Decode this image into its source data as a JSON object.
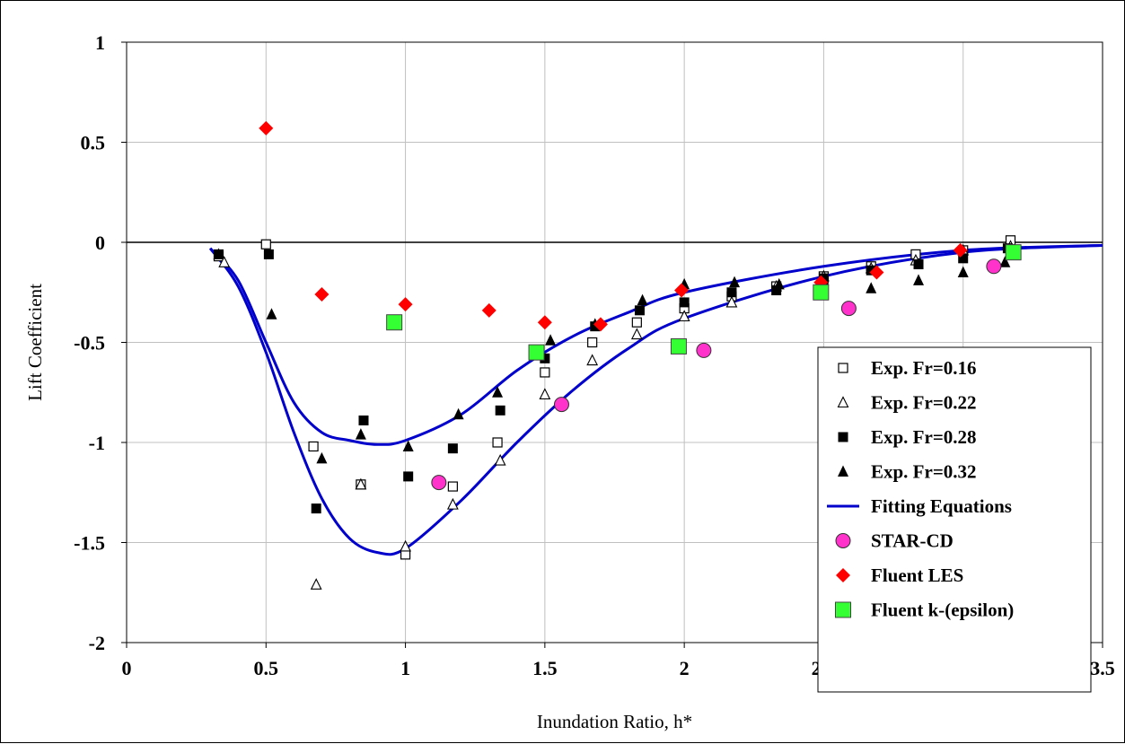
{
  "chart_data": {
    "type": "scatter",
    "title": "",
    "xlabel": "Inundation Ratio, h*",
    "ylabel": "Lift Coefficient",
    "xlim": [
      0,
      3.5
    ],
    "ylim": [
      -2,
      1
    ],
    "x_ticks": [
      "0",
      "0.5",
      "1",
      "1.5",
      "2",
      "2.5",
      "3",
      "3.5"
    ],
    "y_ticks": [
      "1",
      "0.5",
      "0",
      "-0.5",
      "-1",
      "-1.5",
      "-2"
    ],
    "x_tick_values": [
      0,
      0.5,
      1,
      1.5,
      2,
      2.5,
      3,
      3.5
    ],
    "y_tick_values": [
      1,
      0.5,
      0,
      -0.5,
      -1,
      -1.5,
      -2
    ],
    "grid": true,
    "zero_line": true,
    "legend_position": "bottom-right",
    "series": [
      {
        "name": "Exp. Fr=0.16",
        "marker": "square-open",
        "color": "#000000",
        "points": [
          [
            0.33,
            -0.07
          ],
          [
            0.5,
            -0.01
          ],
          [
            0.67,
            -1.02
          ],
          [
            0.84,
            -1.21
          ],
          [
            1.0,
            -1.56
          ],
          [
            1.17,
            -1.22
          ],
          [
            1.33,
            -1.0
          ],
          [
            1.5,
            -0.65
          ],
          [
            1.67,
            -0.5
          ],
          [
            1.83,
            -0.4
          ],
          [
            2.0,
            -0.33
          ],
          [
            2.17,
            -0.27
          ],
          [
            2.33,
            -0.22
          ],
          [
            2.5,
            -0.17
          ],
          [
            2.67,
            -0.12
          ],
          [
            2.83,
            -0.06
          ],
          [
            3.0,
            -0.04
          ],
          [
            3.17,
            0.01
          ]
        ]
      },
      {
        "name": "Exp. Fr=0.22",
        "marker": "triangle-open",
        "color": "#000000",
        "points": [
          [
            0.35,
            -0.1
          ],
          [
            0.68,
            -1.71
          ],
          [
            0.84,
            -1.21
          ],
          [
            1.0,
            -1.52
          ],
          [
            1.17,
            -1.31
          ],
          [
            1.34,
            -1.09
          ],
          [
            1.5,
            -0.76
          ],
          [
            1.67,
            -0.59
          ],
          [
            1.83,
            -0.46
          ],
          [
            2.0,
            -0.37
          ],
          [
            2.17,
            -0.3
          ],
          [
            2.33,
            -0.22
          ],
          [
            2.5,
            -0.17
          ],
          [
            2.67,
            -0.13
          ],
          [
            2.83,
            -0.09
          ],
          [
            3.0,
            -0.04
          ],
          [
            3.17,
            -0.02
          ]
        ]
      },
      {
        "name": "Exp. Fr=0.28",
        "marker": "square-filled",
        "color": "#000000",
        "points": [
          [
            0.33,
            -0.06
          ],
          [
            0.51,
            -0.06
          ],
          [
            0.68,
            -1.33
          ],
          [
            0.85,
            -0.89
          ],
          [
            1.01,
            -1.17
          ],
          [
            1.17,
            -1.03
          ],
          [
            1.34,
            -0.84
          ],
          [
            1.5,
            -0.58
          ],
          [
            1.68,
            -0.42
          ],
          [
            1.84,
            -0.34
          ],
          [
            2.0,
            -0.3
          ],
          [
            2.17,
            -0.25
          ],
          [
            2.33,
            -0.24
          ],
          [
            2.5,
            -0.18
          ],
          [
            2.67,
            -0.14
          ],
          [
            2.84,
            -0.11
          ],
          [
            3.0,
            -0.08
          ],
          [
            3.16,
            -0.03
          ]
        ]
      },
      {
        "name": "Exp. Fr=0.32",
        "marker": "triangle-filled",
        "color": "#000000",
        "points": [
          [
            0.33,
            -0.06
          ],
          [
            0.52,
            -0.36
          ],
          [
            0.7,
            -1.08
          ],
          [
            0.84,
            -0.96
          ],
          [
            1.01,
            -1.02
          ],
          [
            1.19,
            -0.86
          ],
          [
            1.33,
            -0.75
          ],
          [
            1.52,
            -0.49
          ],
          [
            1.68,
            -0.41
          ],
          [
            1.85,
            -0.29
          ],
          [
            2.0,
            -0.21
          ],
          [
            2.18,
            -0.2
          ],
          [
            2.34,
            -0.21
          ],
          [
            2.5,
            -0.19
          ],
          [
            2.67,
            -0.23
          ],
          [
            2.84,
            -0.19
          ],
          [
            3.0,
            -0.15
          ],
          [
            3.15,
            -0.1
          ]
        ]
      },
      {
        "name": "Fitting Equations",
        "marker": "line",
        "color": "#0000cc",
        "curves": [
          [
            [
              0.3,
              -0.03
            ],
            [
              0.4,
              -0.19
            ],
            [
              0.5,
              -0.5
            ],
            [
              0.6,
              -0.8
            ],
            [
              0.7,
              -0.95
            ],
            [
              0.8,
              -0.99
            ],
            [
              0.9,
              -1.01
            ],
            [
              1.0,
              -0.99
            ],
            [
              1.2,
              -0.86
            ],
            [
              1.4,
              -0.64
            ],
            [
              1.6,
              -0.47
            ],
            [
              1.8,
              -0.35
            ],
            [
              2.0,
              -0.25
            ],
            [
              2.5,
              -0.12
            ],
            [
              3.0,
              -0.04
            ],
            [
              3.5,
              -0.015
            ]
          ],
          [
            [
              0.3,
              -0.03
            ],
            [
              0.4,
              -0.22
            ],
            [
              0.5,
              -0.55
            ],
            [
              0.6,
              -0.95
            ],
            [
              0.7,
              -1.28
            ],
            [
              0.8,
              -1.48
            ],
            [
              0.9,
              -1.55
            ],
            [
              1.0,
              -1.53
            ],
            [
              1.2,
              -1.29
            ],
            [
              1.4,
              -1.0
            ],
            [
              1.6,
              -0.74
            ],
            [
              1.8,
              -0.53
            ],
            [
              2.0,
              -0.38
            ],
            [
              2.5,
              -0.17
            ],
            [
              3.0,
              -0.05
            ],
            [
              3.5,
              -0.015
            ]
          ]
        ]
      },
      {
        "name": "STAR-CD",
        "marker": "circle",
        "color": "#ff33cc",
        "points": [
          [
            1.12,
            -1.2
          ],
          [
            1.56,
            -0.81
          ],
          [
            2.07,
            -0.54
          ],
          [
            2.59,
            -0.33
          ],
          [
            3.11,
            -0.12
          ]
        ]
      },
      {
        "name": "Fluent  LES",
        "marker": "diamond",
        "color": "#ff0000",
        "points": [
          [
            0.5,
            0.57
          ],
          [
            0.7,
            -0.26
          ],
          [
            1.0,
            -0.31
          ],
          [
            1.3,
            -0.34
          ],
          [
            1.5,
            -0.4
          ],
          [
            1.7,
            -0.41
          ],
          [
            1.99,
            -0.24
          ],
          [
            2.49,
            -0.2
          ],
          [
            2.69,
            -0.15
          ],
          [
            2.99,
            -0.04
          ]
        ]
      },
      {
        "name": "Fluent  k-(epsilon)",
        "marker": "square-green",
        "color": "#33ff33",
        "points": [
          [
            0.96,
            -0.4
          ],
          [
            1.47,
            -0.55
          ],
          [
            1.98,
            -0.52
          ],
          [
            2.49,
            -0.25
          ],
          [
            3.18,
            -0.05
          ]
        ]
      }
    ]
  }
}
